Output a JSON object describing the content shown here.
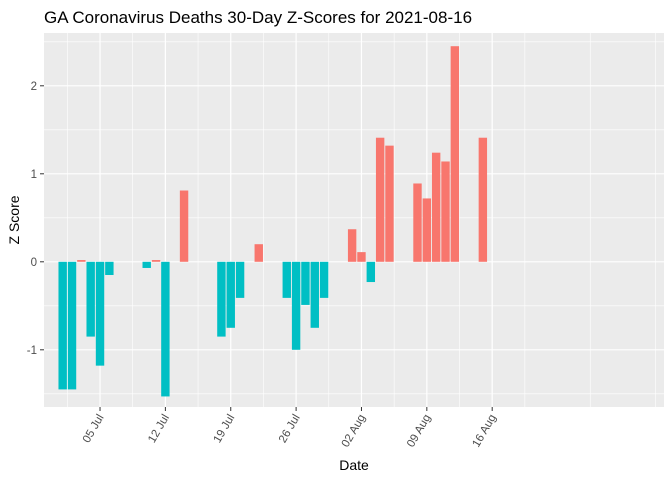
{
  "chart_data": {
    "type": "bar",
    "title": "GA Coronavirus Deaths 30-Day Z-Scores for 2021-08-16",
    "xlabel": "Date",
    "ylabel": "Z Score",
    "ylim": [
      -1.65,
      2.6
    ],
    "yticks": [
      -1,
      0,
      1,
      2
    ],
    "yticklabels": [
      "-1",
      "0",
      "1",
      "2"
    ],
    "x_start_day": 0,
    "x_range_days": [
      -2.0,
      64.4
    ],
    "xticks_days": [
      4,
      11,
      18,
      25,
      32,
      39,
      46
    ],
    "xticklabels": [
      "05 Jul",
      "12 Jul",
      "19 Jul",
      "26 Jul",
      "02 Aug",
      "09 Aug",
      "16 Aug"
    ],
    "colors": {
      "positive": "#F8766D",
      "negative": "#00BFC4",
      "panel": "#EBEBEB",
      "grid": "#FFFFFF"
    },
    "x_dates": [
      "2021-07-02",
      "2021-07-03",
      "2021-07-04",
      "2021-07-05",
      "2021-07-06",
      "2021-07-07",
      "2021-07-08",
      "2021-07-09",
      "2021-07-10",
      "2021-07-11",
      "2021-07-12",
      "2021-07-13",
      "2021-07-14",
      "2021-07-15",
      "2021-07-16",
      "2021-07-17",
      "2021-07-18",
      "2021-07-19",
      "2021-07-20",
      "2021-07-21",
      "2021-07-22",
      "2021-07-23",
      "2021-07-24",
      "2021-07-25",
      "2021-07-26",
      "2021-07-27",
      "2021-07-28",
      "2021-07-29",
      "2021-07-30",
      "2021-07-31",
      "2021-08-01",
      "2021-08-02",
      "2021-08-03",
      "2021-08-04",
      "2021-08-05",
      "2021-08-06",
      "2021-08-07",
      "2021-08-08",
      "2021-08-09",
      "2021-08-10",
      "2021-08-11",
      "2021-08-12",
      "2021-08-13",
      "2021-08-14",
      "2021-08-15",
      "2021-08-16"
    ],
    "values": [
      -1.45,
      -1.45,
      0.02,
      -0.85,
      -1.18,
      -0.15,
      0,
      0,
      0,
      -0.07,
      0.02,
      -1.53,
      0,
      0.81,
      0,
      0,
      0,
      -0.85,
      -0.75,
      -0.41,
      0,
      0.2,
      0,
      0,
      -0.41,
      -1.0,
      -0.49,
      -0.75,
      -0.41,
      0,
      0,
      0.37,
      0.11,
      -0.23,
      1.41,
      1.32,
      0,
      0,
      0.89,
      0.72,
      1.24,
      1.14,
      2.45,
      0,
      0,
      1.41
    ]
  }
}
